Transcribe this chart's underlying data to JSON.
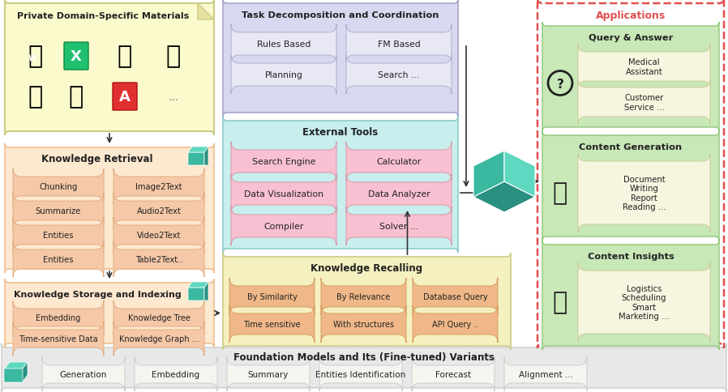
{
  "title": "Foundation Models and Its (Fine-tuned) Variants",
  "bg_color": "#ffffff",
  "bottom_items": [
    "Generation",
    "Embedding",
    "Summary",
    "Entities Identification",
    "Forecast",
    "Alignment ..."
  ],
  "knowledge_retrieval_items": [
    [
      "Chunking",
      "Image2Text"
    ],
    [
      "Summarize",
      "Audio2Text"
    ],
    [
      "Entities",
      "Video2Text"
    ],
    [
      "Entities",
      "Table2Text.."
    ]
  ],
  "knowledge_storage_items": [
    [
      "Embedding",
      "Knowledge Tree"
    ],
    [
      "Time-sensitive Data",
      "Knowledge Graph ..."
    ]
  ],
  "task_decomp_items": [
    [
      "Rules Based",
      "FM Based"
    ],
    [
      "Planning",
      "Search ..."
    ]
  ],
  "external_tools_items": [
    [
      "Search Engine",
      "Calculator"
    ],
    [
      "Data Visualization",
      "Data Analyzer"
    ],
    [
      "Compiler",
      "Solver ..."
    ]
  ],
  "knowledge_recalling_items": [
    [
      "By Similarity",
      "By Relevance",
      "Database Query"
    ],
    [
      "Time sensitive",
      "With structures",
      "API Query .."
    ]
  ],
  "app_qa_items": [
    "Medical\nAssistant",
    "Customer\nService ..."
  ],
  "app_cg_items": [
    "Document\nWriting\nReport\nReading ..."
  ],
  "app_ci_items": [
    "Logistics\nScheduling\nSmart\nMarketing ..."
  ],
  "colors": {
    "private_bg": "#fafacc",
    "private_border": "#cccc88",
    "retrieval_bg": "#fde8d0",
    "retrieval_border": "#f0c090",
    "retrieval_pill": "#f5c8a8",
    "retrieval_pill_border": "#e0a878",
    "storage_bg": "#fde8d0",
    "storage_border": "#f0c090",
    "storage_pill": "#f5c8a8",
    "storage_pill_border": "#e0a878",
    "task_bg": "#d8d8f0",
    "task_border": "#a8a8d0",
    "task_pill": "#e8e8f5",
    "task_pill_border": "#b0b0cc",
    "ext_bg": "#c8eeee",
    "ext_border": "#90cccc",
    "ext_pill": "#f8c0d0",
    "ext_pill_border": "#d898a8",
    "recall_bg": "#f5f0c0",
    "recall_border": "#cccc88",
    "recall_pill": "#f0b888",
    "recall_pill_border": "#d09858",
    "app_border": "#e05050",
    "app_title_color": "#e05050",
    "app_section_bg": "#c8e8b8",
    "app_section_border": "#90c878",
    "app_pill_bg": "#f5f5e0",
    "app_pill_border": "#cccc99",
    "bottom_bg": "#e8e8e8",
    "bottom_border": "#cccccc",
    "bottom_pill_bg": "#f5f5f0",
    "teal": "#3ab8a0"
  }
}
